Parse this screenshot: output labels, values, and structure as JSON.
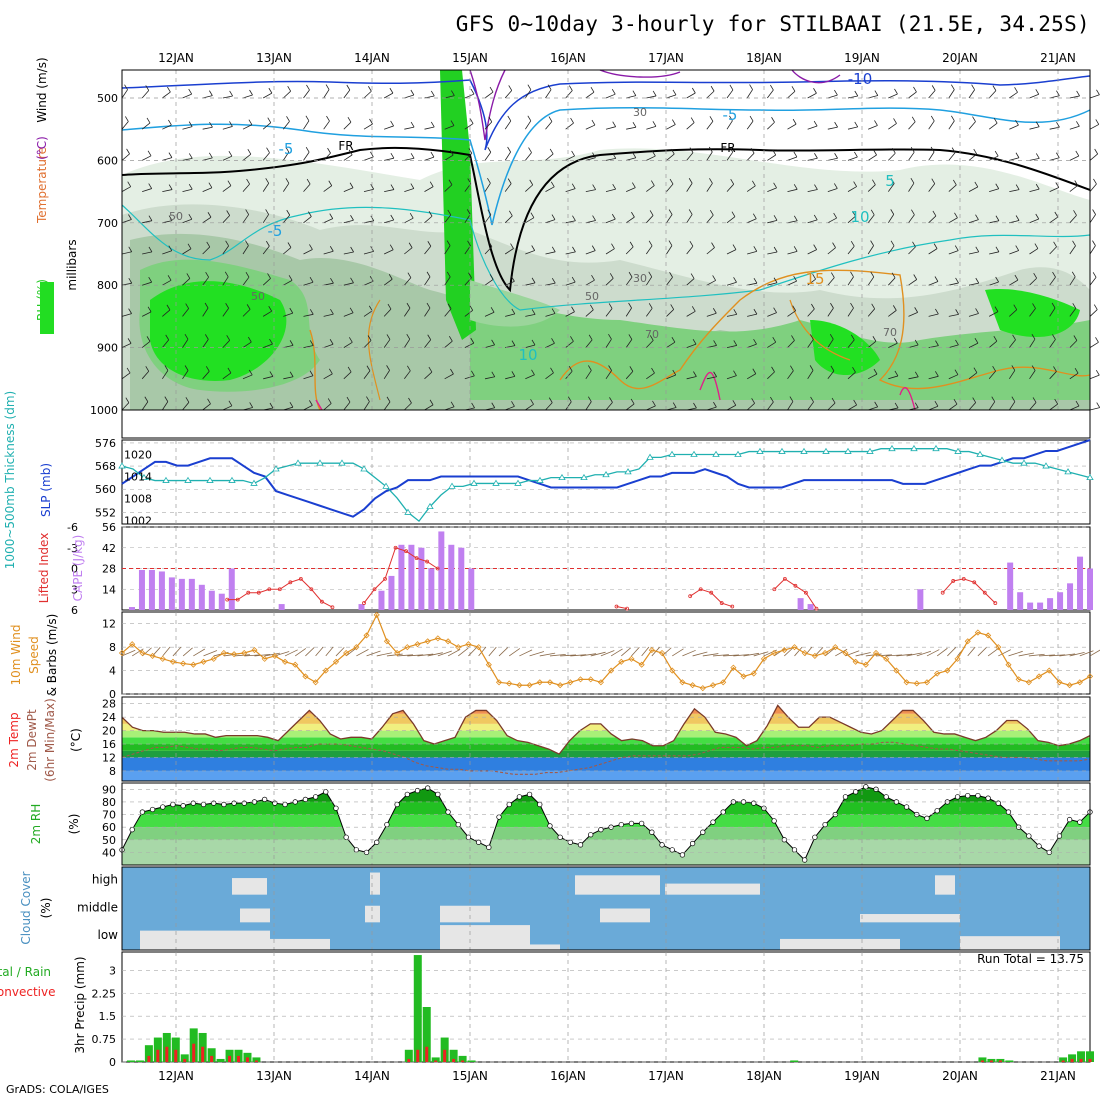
{
  "title": "GFS 0~10day 3-hourly for STILBAAI (21.5E, 34.25S)",
  "credit": "GrADS: COLA/IGES",
  "dates": [
    "12JAN",
    "13JAN",
    "14JAN",
    "15JAN",
    "16JAN",
    "17JAN",
    "18JAN",
    "19JAN",
    "20JAN",
    "21JAN"
  ],
  "colors": {
    "rh_green": "#00d000",
    "rh_light": "#e8f2e8",
    "slp": "#1a3fd0",
    "thick": "#20b0b0",
    "cape": "#c080f0",
    "li": "#e03030",
    "wind": "#e09020",
    "temp_warm": "#f0a040",
    "cloud_blue": "#6aaad8",
    "precip_total": "#22bb22",
    "precip_conv": "#ee2222"
  },
  "chart_data": [
    {
      "type": "heatmap",
      "panel": "upper-air",
      "ylabels_left": [
        "RH (%)",
        "Temperature (°C)",
        "Wind (m/s)"
      ],
      "ylabel": "millibars",
      "yticks": [
        "500",
        "600",
        "700",
        "800",
        "900",
        "1000"
      ],
      "contour_labels": [
        "-10",
        "-5",
        "-5",
        "FR",
        "FR",
        "5",
        "-5",
        "10",
        "15",
        "10"
      ],
      "contour_labels_rh": [
        "50",
        "30",
        "50",
        "50",
        "70",
        "70",
        "30"
      ],
      "x": [
        "12JAN",
        "13JAN",
        "14JAN",
        "15JAN",
        "16JAN",
        "17JAN",
        "18JAN",
        "19JAN",
        "20JAN",
        "21JAN"
      ]
    },
    {
      "type": "line",
      "panel": "slp-thickness",
      "ylabels": [
        "1000~500mb Thickness (dm)",
        "SLP (mb)"
      ],
      "yticks_left": [
        "576",
        "568",
        "560",
        "552"
      ],
      "yticks_right": [
        "1020",
        "1014",
        "1008",
        "1002"
      ],
      "ylim_thickness": [
        548,
        577
      ],
      "ylim_slp": [
        1001,
        1024
      ],
      "series": [
        {
          "name": "SLP (mb)",
          "axis": "right",
          "values": [
            1012,
            1014,
            1016,
            1018,
            1018,
            1017,
            1017,
            1018,
            1019,
            1019,
            1019,
            1017,
            1015,
            1014,
            1010,
            1009,
            1008,
            1007,
            1006,
            1005,
            1004,
            1003,
            1005,
            1008,
            1010,
            1011,
            1013,
            1013,
            1013,
            1014,
            1014,
            1014,
            1014,
            1014,
            1014,
            1014,
            1014,
            1013,
            1012,
            1011,
            1011,
            1011,
            1011,
            1011,
            1011,
            1011,
            1012,
            1013,
            1014,
            1014,
            1015,
            1015,
            1015,
            1016,
            1015,
            1014,
            1012,
            1011,
            1011,
            1011,
            1011,
            1012,
            1013,
            1013,
            1013,
            1013,
            1013,
            1013,
            1013,
            1013,
            1013,
            1012,
            1012,
            1012,
            1013,
            1014,
            1015,
            1016,
            1017,
            1017,
            1018,
            1019,
            1019,
            1020,
            1021,
            1021,
            1022,
            1023,
            1024
          ]
        },
        {
          "name": "Thickness (dm)",
          "axis": "left",
          "values": [
            568,
            567,
            564,
            563,
            563,
            563,
            563,
            563,
            563,
            563,
            563,
            563,
            562,
            564,
            567,
            568,
            569,
            569,
            569,
            569,
            569,
            569,
            567,
            564,
            561,
            557,
            552,
            549,
            554,
            558,
            561,
            561,
            562,
            562,
            562,
            562,
            562,
            563,
            563,
            564,
            564,
            564,
            564,
            565,
            565,
            566,
            566,
            567,
            571,
            571,
            572,
            572,
            572,
            572,
            572,
            572,
            572,
            573,
            573,
            573,
            573,
            573,
            573,
            573,
            573,
            573,
            573,
            573,
            573,
            574,
            574,
            574,
            574,
            574,
            574,
            574,
            573,
            573,
            572,
            571,
            570,
            569,
            569,
            569,
            568,
            567,
            566,
            565,
            564
          ]
        }
      ]
    },
    {
      "type": "bar",
      "panel": "cape-lifted-index",
      "ylabels": [
        "Lifted Index",
        "CAPE (J/kg)"
      ],
      "yticks_left": [
        "-6",
        "-3",
        "0",
        "3",
        "6"
      ],
      "yticks_right": [
        "56",
        "42",
        "28",
        "14"
      ],
      "ylim_cape": [
        0,
        56
      ],
      "cape": [
        0,
        2,
        27,
        27,
        26,
        22,
        21,
        21,
        17,
        13,
        11,
        28,
        0,
        0,
        0,
        0,
        4,
        0,
        0,
        0,
        0,
        0,
        0,
        0,
        4,
        0,
        13,
        23,
        44,
        44,
        42,
        28,
        53,
        44,
        42,
        28,
        0,
        0,
        0,
        0,
        0,
        0,
        0,
        0,
        0,
        0,
        0,
        0,
        0,
        0,
        0,
        0,
        0,
        0,
        0,
        0,
        0,
        0,
        0,
        0,
        0,
        0,
        0,
        0,
        0,
        0,
        0,
        0,
        8,
        4,
        0,
        0,
        0,
        0,
        0,
        0,
        0,
        0,
        0,
        0,
        14,
        0,
        0,
        0,
        0,
        0,
        0,
        0,
        0,
        32,
        12,
        5,
        5,
        8,
        12,
        18,
        36,
        28
      ],
      "lifted_index": [
        null,
        null,
        null,
        null,
        null,
        null,
        null,
        null,
        null,
        null,
        4.5,
        4.5,
        3.5,
        3.5,
        3,
        3,
        2,
        1.5,
        3,
        4.8,
        5.6,
        null,
        null,
        5,
        3,
        1.5,
        -3,
        -2.5,
        -1.5,
        -1,
        0,
        null,
        null,
        null,
        null,
        null,
        null,
        null,
        null,
        null,
        null,
        null,
        null,
        null,
        null,
        null,
        null,
        5.5,
        5.8,
        null,
        null,
        null,
        null,
        null,
        4,
        3,
        3.5,
        5,
        5.5,
        null,
        null,
        null,
        3,
        1.5,
        2.5,
        3.5,
        5.8,
        null,
        null,
        null,
        null,
        null,
        null,
        null,
        null,
        null,
        null,
        null,
        3.5,
        1.8,
        1.5,
        2,
        3.5,
        5,
        null,
        null,
        null,
        null,
        null,
        null,
        null,
        null,
        null
      ]
    },
    {
      "type": "line",
      "panel": "10m-wind",
      "ylabel": "10m Wind Speed & Barbs (m/s)",
      "yticks": [
        "12",
        "8",
        "4",
        "0"
      ],
      "ylim": [
        0,
        14
      ],
      "values": [
        7,
        8.5,
        7,
        6.5,
        6,
        5.5,
        5.2,
        5,
        5.5,
        6,
        7,
        6.8,
        7,
        7.5,
        6,
        6.5,
        5.5,
        5,
        3,
        2,
        4,
        5.5,
        7,
        8,
        10,
        13.5,
        9,
        7,
        8,
        8.5,
        9,
        9.5,
        9,
        8,
        8.5,
        8,
        5,
        2,
        1.8,
        1.5,
        1.5,
        2,
        2,
        1.5,
        2,
        2.5,
        2.5,
        2,
        4,
        5.5,
        6,
        5,
        7.5,
        7,
        4,
        2,
        1.5,
        1,
        1.5,
        2,
        4.5,
        3,
        3.5,
        6,
        7,
        7.5,
        8,
        7,
        6.5,
        7,
        8,
        7,
        5.5,
        5,
        7,
        6,
        4,
        2,
        1.8,
        2,
        3.5,
        4,
        6,
        9,
        10.5,
        10,
        8,
        5,
        2.5,
        2,
        3,
        4,
        2,
        1.5,
        2,
        3
      ]
    },
    {
      "type": "area",
      "panel": "2m-temp",
      "ylabels": [
        "2m Temp",
        "2m DewPt",
        "(6hr Min/Max)"
      ],
      "yunit": "(°C)",
      "yticks": [
        "28",
        "24",
        "20",
        "16",
        "12",
        "8"
      ],
      "ylim": [
        5,
        30
      ],
      "temp": [
        24,
        21,
        20,
        20,
        19.5,
        19.5,
        19.5,
        19,
        19,
        18,
        18.5,
        18.5,
        18.5,
        18.5,
        18,
        17,
        20,
        23,
        26,
        23,
        19,
        17.5,
        18,
        18,
        17.5,
        21,
        25,
        26,
        22,
        17,
        16,
        17,
        18,
        24,
        26,
        26,
        23,
        18.5,
        17,
        16.5,
        15.5,
        14.5,
        13,
        17,
        20,
        22,
        22,
        19,
        17,
        17.5,
        17,
        15.5,
        15.5,
        17,
        22,
        26.5,
        24,
        19.5,
        19,
        18,
        15.5,
        17,
        21.5,
        27.5,
        24,
        21,
        21,
        24,
        24,
        22.5,
        21,
        19.5,
        19,
        20,
        23,
        26,
        26,
        23,
        19.5,
        19,
        19,
        18,
        17,
        18,
        20,
        23,
        23,
        20.5,
        17,
        16.5,
        15.5,
        16,
        17,
        18.5
      ],
      "dewpoint": [
        12,
        13,
        14,
        15,
        15,
        15.5,
        15,
        14.5,
        14.5,
        14,
        14.5,
        15,
        15,
        14.5,
        14,
        14.5,
        15,
        15,
        16,
        16,
        16,
        15.5,
        15,
        14.5,
        14,
        13,
        12,
        10.5,
        9.5,
        9,
        8.5,
        8.5,
        8,
        8,
        8,
        7.5,
        7,
        7,
        7,
        7.5,
        7.5,
        8,
        8.5,
        9,
        10,
        11,
        12,
        12.5,
        12.5,
        12.5,
        12.5,
        12.5,
        12.5,
        13,
        14,
        15,
        15,
        15,
        14.5,
        15,
        15,
        15.5,
        15.5,
        15.5,
        15,
        15.5,
        15.5,
        15.5,
        16,
        16,
        16.5,
        16.5,
        16,
        15.5,
        15,
        14.5,
        14.5,
        14,
        13.5,
        13,
        12.5,
        12,
        12,
        12,
        11.5,
        11,
        11,
        11,
        11,
        11.5
      ]
    },
    {
      "type": "area",
      "panel": "2m-rh",
      "ylabel": "2m RH",
      "yunit": "(%)",
      "yticks": [
        "90",
        "80",
        "70",
        "60",
        "50",
        "40"
      ],
      "ylim": [
        30,
        95
      ],
      "values": [
        42,
        58,
        72,
        74,
        76,
        78,
        77,
        79,
        78,
        79,
        78,
        79,
        79,
        80,
        82,
        79,
        78,
        80,
        82,
        84,
        88,
        75,
        52,
        42,
        40,
        48,
        62,
        78,
        86,
        89,
        91,
        86,
        72,
        62,
        52,
        48,
        44,
        68,
        78,
        84,
        86,
        78,
        61,
        52,
        48,
        46,
        54,
        58,
        60,
        62,
        63,
        63,
        56,
        46,
        42,
        38,
        47,
        56,
        64,
        72,
        80,
        80,
        79,
        75,
        65,
        50,
        42,
        34,
        52,
        62,
        70,
        84,
        88,
        92,
        90,
        84,
        80,
        76,
        70,
        67,
        73,
        80,
        84,
        85,
        85,
        83,
        79,
        72,
        60,
        53,
        45,
        40,
        53,
        66,
        64,
        72
      ]
    },
    {
      "type": "area",
      "panel": "cloud-cover",
      "ylabels": [
        "Cloud Cover",
        "(%)"
      ],
      "levels": [
        "high",
        "middle",
        "low"
      ]
    },
    {
      "type": "bar",
      "panel": "precip",
      "ylabels": [
        "3hr Precip (mm)",
        "Total / Rain",
        "Convective"
      ],
      "yticks": [
        "3",
        "2.25",
        "1.5",
        "0.75",
        "0"
      ],
      "ylim": [
        0,
        3.6
      ],
      "run_total": "Run Total = 13.75",
      "total": [
        0,
        0.05,
        0.05,
        0.55,
        0.8,
        0.95,
        0.8,
        0.25,
        1.1,
        0.95,
        0.45,
        0.1,
        0.4,
        0.4,
        0.3,
        0.15,
        0,
        0,
        0,
        0,
        0,
        0,
        0,
        0,
        0,
        0,
        0,
        0,
        0,
        0,
        0,
        0,
        0.4,
        3.5,
        1.8,
        0.15,
        0.8,
        0.4,
        0.2,
        0.05,
        0,
        0,
        0,
        0,
        0,
        0,
        0,
        0,
        0,
        0,
        0,
        0,
        0,
        0,
        0,
        0,
        0,
        0,
        0,
        0,
        0,
        0,
        0,
        0,
        0,
        0,
        0,
        0,
        0,
        0,
        0,
        0,
        0,
        0,
        0,
        0.05,
        0,
        0,
        0,
        0,
        0,
        0,
        0,
        0,
        0,
        0,
        0,
        0,
        0,
        0,
        0,
        0,
        0,
        0,
        0,
        0,
        0.15,
        0.1,
        0.1,
        0.05,
        0,
        0,
        0,
        0,
        0,
        0.15,
        0.25,
        0.35,
        0.35
      ],
      "convective": [
        0,
        0,
        0,
        0.2,
        0.4,
        0.5,
        0.4,
        0.1,
        0.6,
        0.5,
        0.2,
        0,
        0.2,
        0.2,
        0.15,
        0.05,
        0,
        0,
        0,
        0,
        0,
        0,
        0,
        0,
        0,
        0,
        0,
        0,
        0,
        0,
        0,
        0,
        0.1,
        0.4,
        0.5,
        0.05,
        0.4,
        0.1,
        0.05,
        0,
        0,
        0,
        0,
        0,
        0,
        0,
        0,
        0,
        0,
        0,
        0,
        0,
        0,
        0,
        0,
        0,
        0,
        0,
        0,
        0,
        0,
        0,
        0,
        0,
        0,
        0,
        0,
        0,
        0,
        0,
        0,
        0,
        0,
        0,
        0,
        0,
        0,
        0,
        0,
        0,
        0,
        0,
        0,
        0,
        0,
        0,
        0,
        0,
        0,
        0,
        0,
        0,
        0,
        0,
        0,
        0,
        0.05,
        0.05,
        0.05,
        0,
        0,
        0,
        0,
        0,
        0,
        0.05,
        0.1,
        0.1,
        0.1
      ]
    }
  ]
}
